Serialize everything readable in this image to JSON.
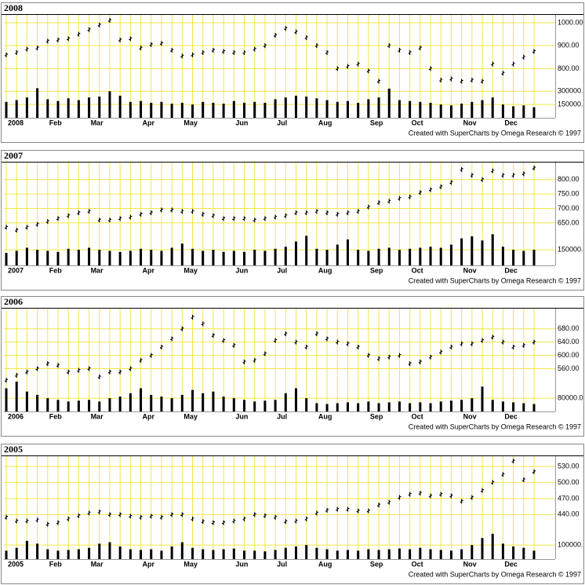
{
  "chart_data": [
    {
      "type": "stock",
      "title": "2008",
      "footer": "Created with SuperCharts by Omega Research © 1997",
      "categories": [
        "2008",
        null,
        null,
        null,
        "Feb",
        null,
        null,
        null,
        "Mar",
        null,
        null,
        null,
        null,
        "Apr",
        null,
        null,
        null,
        "May",
        null,
        null,
        null,
        null,
        "Jun",
        null,
        null,
        null,
        "Jul",
        null,
        null,
        null,
        "Aug",
        null,
        null,
        null,
        null,
        "Sep",
        null,
        null,
        null,
        "Oct",
        null,
        null,
        null,
        null,
        "Nov",
        null,
        null,
        null,
        "Dec",
        null,
        null,
        null
      ],
      "series": [
        {
          "color": "#000000",
          "values": [
            860,
            870,
            885,
            890,
            920,
            925,
            930,
            950,
            970,
            990,
            1010,
            925,
            930,
            890,
            905,
            910,
            880,
            855,
            860,
            870,
            880,
            875,
            870,
            870,
            885,
            900,
            945,
            975,
            960,
            935,
            900,
            870,
            800,
            810,
            820,
            790,
            745,
            900,
            880,
            870,
            890,
            800,
            750,
            755,
            745,
            750,
            745,
            820,
            780,
            820,
            850,
            875
          ]
        },
        {
          "color": "#000000",
          "axis": "y2",
          "values": [
            180000,
            200000,
            230000,
            335000,
            210000,
            190000,
            220000,
            200000,
            230000,
            240000,
            300000,
            250000,
            180000,
            190000,
            170000,
            180000,
            160000,
            170000,
            150000,
            180000,
            170000,
            160000,
            190000,
            170000,
            180000,
            170000,
            210000,
            230000,
            250000,
            240000,
            220000,
            200000,
            180000,
            190000,
            170000,
            210000,
            230000,
            330000,
            200000,
            190000,
            180000,
            170000,
            150000,
            140000,
            160000,
            180000,
            200000,
            230000,
            150000,
            130000,
            140000,
            120000
          ]
        }
      ],
      "ylim": [
        586,
        1034
      ],
      "yticks": [
        {
          "value": 800,
          "label": "800.00"
        },
        {
          "value": 900,
          "label": "900.00"
        },
        {
          "value": 1000,
          "label": "1000.00"
        }
      ],
      "y2lim": [
        0,
        1165000
      ],
      "y2ticks": [
        {
          "value": 150000,
          "label": "150000."
        },
        {
          "value": 300000,
          "label": "300000."
        }
      ],
      "grid": true,
      "grid_color": "#f2e64a"
    },
    {
      "type": "stock",
      "title": "2007",
      "footer": "Created with SuperCharts by Omega Research © 1997",
      "categories": [
        "2007",
        null,
        null,
        null,
        "Feb",
        null,
        null,
        null,
        "Mar",
        null,
        null,
        null,
        null,
        "Apr",
        null,
        null,
        null,
        "May",
        null,
        null,
        null,
        null,
        "Jun",
        null,
        null,
        null,
        "Jul",
        null,
        null,
        null,
        "Aug",
        null,
        null,
        null,
        null,
        "Sep",
        null,
        null,
        null,
        "Oct",
        null,
        null,
        null,
        null,
        "Nov",
        null,
        null,
        null,
        "Dec",
        null,
        null,
        null
      ],
      "series": [
        {
          "color": "#000000",
          "values": [
            635,
            625,
            635,
            645,
            655,
            665,
            675,
            685,
            690,
            660,
            660,
            665,
            670,
            680,
            685,
            695,
            695,
            690,
            690,
            680,
            675,
            665,
            665,
            665,
            660,
            665,
            670,
            675,
            685,
            685,
            690,
            685,
            680,
            685,
            690,
            705,
            720,
            725,
            735,
            740,
            755,
            765,
            775,
            790,
            835,
            815,
            800,
            830,
            815,
            815,
            820,
            840
          ]
        },
        {
          "color": "#000000",
          "axis": "y2",
          "values": [
            120000,
            140000,
            170000,
            150000,
            140000,
            130000,
            160000,
            150000,
            170000,
            150000,
            140000,
            130000,
            140000,
            160000,
            150000,
            140000,
            170000,
            210000,
            160000,
            140000,
            150000,
            130000,
            140000,
            130000,
            150000,
            140000,
            160000,
            180000,
            230000,
            285000,
            160000,
            150000,
            200000,
            250000,
            150000,
            140000,
            160000,
            170000,
            150000,
            160000,
            170000,
            180000,
            170000,
            200000,
            260000,
            280000,
            240000,
            300000,
            180000,
            150000,
            140000,
            150000
          ]
        }
      ],
      "ylim": [
        503,
        859
      ],
      "yticks": [
        {
          "value": 650,
          "label": "650.00"
        },
        {
          "value": 700,
          "label": "700.00"
        },
        {
          "value": 750,
          "label": "750.00"
        },
        {
          "value": 800,
          "label": "800.00"
        }
      ],
      "y2lim": [
        0,
        990000
      ],
      "y2ticks": [
        {
          "value": 150000,
          "label": "150000."
        }
      ],
      "grid": true,
      "grid_color": "#f2e64a"
    },
    {
      "type": "stock",
      "title": "2006",
      "footer": "Created with SuperCharts by Omega Research © 1997",
      "categories": [
        "2006",
        null,
        null,
        null,
        "Feb",
        null,
        null,
        null,
        "Mar",
        null,
        null,
        null,
        null,
        "Apr",
        null,
        null,
        null,
        "May",
        null,
        null,
        null,
        null,
        "Jun",
        null,
        null,
        null,
        "Jul",
        null,
        null,
        null,
        "Aug",
        null,
        null,
        null,
        null,
        "Sep",
        null,
        null,
        null,
        "Oct",
        null,
        null,
        null,
        null,
        "Nov",
        null,
        null,
        null,
        "Dec",
        null,
        null,
        null
      ],
      "series": [
        {
          "color": "#000000",
          "values": [
            525,
            540,
            550,
            560,
            575,
            570,
            550,
            555,
            560,
            535,
            550,
            550,
            560,
            585,
            600,
            625,
            650,
            680,
            715,
            695,
            660,
            645,
            630,
            580,
            585,
            605,
            645,
            665,
            640,
            625,
            665,
            650,
            640,
            635,
            625,
            600,
            590,
            595,
            600,
            575,
            580,
            595,
            610,
            625,
            635,
            635,
            645,
            655,
            640,
            625,
            630,
            640
          ]
        },
        {
          "color": "#000000",
          "axis": "y2",
          "values": [
            140000,
            180000,
            120000,
            100000,
            80000,
            70000,
            60000,
            65000,
            70000,
            60000,
            80000,
            90000,
            110000,
            140000,
            100000,
            90000,
            80000,
            100000,
            130000,
            110000,
            120000,
            90000,
            80000,
            70000,
            60000,
            65000,
            70000,
            110000,
            140000,
            80000,
            50000,
            45000,
            50000,
            55000,
            50000,
            60000,
            50000,
            55000,
            60000,
            50000,
            55000,
            50000,
            60000,
            65000,
            70000,
            80000,
            150000,
            70000,
            60000,
            55000,
            50000,
            45000
          ]
        }
      ],
      "ylim": [
        431,
        741
      ],
      "yticks": [
        {
          "value": 560,
          "label": "560.00"
        },
        {
          "value": 600,
          "label": "600.00"
        },
        {
          "value": 640,
          "label": "640.00"
        },
        {
          "value": 680,
          "label": "680.00"
        }
      ],
      "y2lim": [
        0,
        621000
      ],
      "y2ticks": [
        {
          "value": 80000,
          "label": "80000.0"
        }
      ],
      "grid": true,
      "grid_color": "#f2e64a"
    },
    {
      "type": "stock",
      "title": "2005",
      "footer": "Created with SuperCharts by Omega Research © 1997",
      "categories": [
        "2005",
        null,
        null,
        null,
        "Feb",
        null,
        null,
        null,
        "Mar",
        null,
        null,
        null,
        null,
        "Apr",
        null,
        null,
        null,
        "May",
        null,
        null,
        null,
        null,
        "Jun",
        null,
        null,
        null,
        "Jul",
        null,
        null,
        null,
        "Aug",
        null,
        null,
        null,
        null,
        "Sep",
        null,
        null,
        null,
        "Oct",
        null,
        null,
        null,
        null,
        "Nov",
        null,
        null,
        null,
        "Dec",
        null,
        null,
        null
      ],
      "series": [
        {
          "color": "#000000",
          "values": [
            435,
            428,
            428,
            430,
            422,
            425,
            432,
            438,
            443,
            445,
            440,
            440,
            437,
            435,
            437,
            435,
            440,
            440,
            432,
            427,
            425,
            425,
            428,
            432,
            440,
            438,
            435,
            427,
            428,
            432,
            443,
            448,
            450,
            450,
            447,
            447,
            458,
            463,
            472,
            478,
            480,
            475,
            478,
            475,
            465,
            472,
            485,
            500,
            515,
            540,
            505,
            520
          ]
        },
        {
          "color": "#000000",
          "axis": "y2",
          "values": [
            60000,
            80000,
            130000,
            110000,
            70000,
            60000,
            65000,
            70000,
            80000,
            110000,
            120000,
            90000,
            70000,
            65000,
            70000,
            60000,
            90000,
            120000,
            80000,
            70000,
            65000,
            70000,
            75000,
            60000,
            60000,
            55000,
            65000,
            80000,
            90000,
            100000,
            80000,
            70000,
            60000,
            65000,
            60000,
            70000,
            65000,
            70000,
            75000,
            70000,
            80000,
            70000,
            65000,
            60000,
            70000,
            100000,
            150000,
            180000,
            110000,
            90000,
            80000,
            60000
          ]
        }
      ],
      "ylim": [
        357,
        549
      ],
      "yticks": [
        {
          "value": 440,
          "label": "440.00"
        },
        {
          "value": 470,
          "label": "470.00"
        },
        {
          "value": 500,
          "label": "500.00"
        },
        {
          "value": 530,
          "label": "530.00"
        }
      ],
      "y2lim": [
        0,
        733000
      ],
      "y2ticks": [
        {
          "value": 100000,
          "label": "100000."
        }
      ],
      "grid": true,
      "grid_color": "#f2e64a"
    }
  ]
}
